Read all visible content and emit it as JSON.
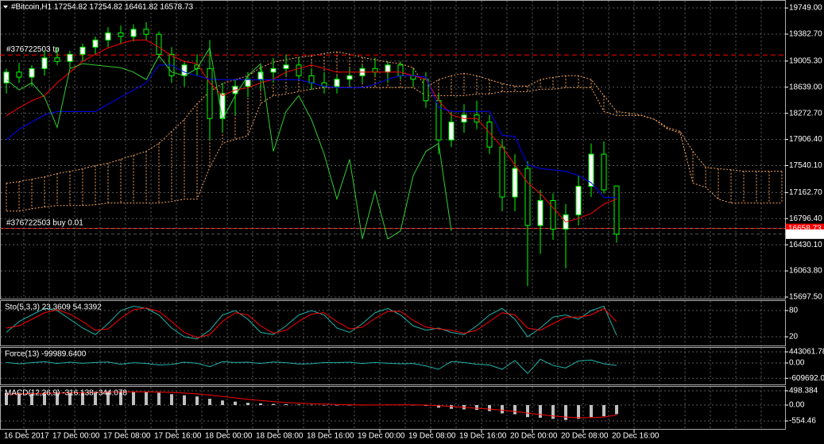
{
  "chart_data": [
    {
      "type": "candlestick",
      "title": "#Bitcoin,H1  17254.82 17254.82 16461.82 16578.73",
      "ylim": [
        15675,
        19861
      ],
      "grid": true,
      "yticks": [
        {
          "value": 19749,
          "label": "19749.00"
        },
        {
          "value": 19382.7,
          "label": "19382.70"
        },
        {
          "value": 19005.3,
          "label": "19005.30"
        },
        {
          "value": 18639,
          "label": "18639.00"
        },
        {
          "value": 18272.7,
          "label": "18272.70"
        },
        {
          "value": 17906.4,
          "label": "17906.40"
        },
        {
          "value": 17540.1,
          "label": "17540.10"
        },
        {
          "value": 17162.7,
          "label": "17162.70"
        },
        {
          "value": 16796.4,
          "label": "16796.40"
        },
        {
          "value": 16430.1,
          "label": "16430.10"
        },
        {
          "value": 16063.8,
          "label": "16063.80"
        },
        {
          "value": 15697.5,
          "label": "15697.50"
        }
      ],
      "time_labels": [
        "16 Dec 2017",
        "17 Dec 00:00",
        "17 Dec 08:00",
        "17 Dec 16:00",
        "18 Dec 00:00",
        "18 Dec 08:00",
        "18 Dec 16:00",
        "19 Dec 00:00",
        "19 Dec 08:00",
        "19 Dec 16:00",
        "20 Dec 00:00",
        "20 Dec 08:00",
        "20 Dec 16:00"
      ],
      "up_color": "#ffffff",
      "down_color": "#000000",
      "wick_color": "#00ff00",
      "open": [
        18700,
        18850,
        18780,
        18900,
        19050,
        19000,
        19100,
        19200,
        19300,
        19400,
        19350,
        19450,
        19380,
        19100,
        18800,
        18950,
        18900,
        18200,
        18550,
        18650,
        18750,
        18850,
        18900,
        18950,
        18800,
        18700,
        18650,
        18750,
        18800,
        18900,
        18850,
        18950,
        18800,
        18750,
        18450,
        17900,
        18150,
        18250,
        18150,
        17800,
        17100,
        17500,
        16700,
        17050,
        16650,
        16850,
        17250,
        17700,
        17254.82
      ],
      "high": [
        18900,
        18980,
        18950,
        19150,
        19200,
        19150,
        19250,
        19350,
        19480,
        19500,
        19520,
        19550,
        19420,
        19200,
        19000,
        19100,
        19300,
        18700,
        18750,
        18850,
        18950,
        19050,
        19100,
        19050,
        18900,
        18850,
        18800,
        18900,
        18950,
        19050,
        19000,
        19000,
        18900,
        18850,
        18550,
        18300,
        18400,
        18450,
        18250,
        17900,
        17700,
        17600,
        17200,
        17150,
        17000,
        17400,
        17850,
        17880,
        17254.82
      ],
      "low": [
        18550,
        18700,
        18650,
        18800,
        18950,
        18900,
        19000,
        19100,
        19200,
        19250,
        19280,
        19300,
        19050,
        18700,
        18650,
        18800,
        17900,
        18000,
        18250,
        18500,
        18600,
        18700,
        18800,
        18750,
        18600,
        18550,
        18550,
        18650,
        18700,
        18800,
        18700,
        18750,
        18650,
        18350,
        17700,
        17800,
        18000,
        18050,
        17700,
        16900,
        16900,
        15850,
        16300,
        16500,
        16100,
        16700,
        17100,
        17150,
        16461.82
      ],
      "close": [
        18850,
        18780,
        18900,
        19050,
        19000,
        19100,
        19200,
        19300,
        19400,
        19350,
        19450,
        19380,
        19100,
        18800,
        18950,
        18900,
        18200,
        18550,
        18650,
        18750,
        18850,
        18900,
        18950,
        18800,
        18700,
        18650,
        18750,
        18800,
        18900,
        18850,
        18950,
        18800,
        18750,
        18450,
        17900,
        18150,
        18250,
        18150,
        17800,
        17100,
        17500,
        16700,
        17050,
        16650,
        16850,
        17250,
        17700,
        17200,
        16578.73
      ],
      "series": [
        {
          "color": "#ff0000",
          "values": [
            18240,
            18350,
            18450,
            18520,
            18700,
            18850,
            19000,
            19100,
            19190,
            19250,
            19300,
            19300,
            19200,
            19080,
            19000,
            18970,
            18700,
            18520,
            18600,
            18630,
            18700,
            18750,
            18850,
            18900,
            18950,
            18900,
            18850,
            18850,
            18850,
            18850,
            18850,
            18850,
            18800,
            18750,
            18450,
            18250,
            18200,
            18200,
            18000,
            17800,
            17550,
            17300,
            17150,
            16950,
            16750,
            16800,
            16870,
            17000,
            17070
          ]
        },
        {
          "color": "#0000ff",
          "values": [
            17900,
            18050,
            18150,
            18250,
            18298,
            18298,
            18298,
            18298,
            18400,
            18500,
            18600,
            18700,
            18950,
            18950,
            18850,
            18800,
            18750,
            18745,
            18745,
            18745,
            18745,
            18745,
            18745,
            18745,
            18700,
            18650,
            18633,
            18633,
            18633,
            18680,
            18750,
            18800,
            18800,
            18780,
            18354,
            18300,
            18300,
            18300,
            18300,
            17963,
            17950,
            17550,
            17500,
            17480,
            17460,
            17400,
            17300,
            17093,
            17093
          ]
        },
        {
          "color": "#32cd32",
          "values": [
            18745,
            18600,
            18700,
            18500,
            18075,
            18900,
            18968,
            18950,
            18930,
            18912,
            18850,
            18745,
            19079,
            18850,
            18800,
            18900,
            19191,
            18186,
            18521,
            18800,
            18968,
            17740,
            18300,
            18521,
            18186,
            17700,
            17070,
            17628,
            16512,
            17182,
            16512,
            16624,
            17400,
            17740,
            17852,
            16624,
            null,
            null,
            null,
            null,
            null,
            null,
            null,
            null,
            null,
            null,
            null,
            null,
            null
          ]
        }
      ],
      "cloud": {
        "color": "#f4a460",
        "span_a": [
          17294,
          17316,
          17349,
          17383,
          17428,
          17461,
          17495,
          17539,
          17573,
          17628,
          17684,
          17740,
          17852,
          18019,
          18186,
          18410,
          18577,
          18689,
          18745,
          18800,
          18912,
          18990,
          19024,
          19057,
          19080,
          19113,
          19135,
          19102,
          19057,
          19024,
          18990,
          18968,
          18912,
          18633,
          18745,
          18800,
          18834,
          18800,
          18745,
          18689,
          18655,
          18655,
          18745,
          18778,
          18800,
          18800,
          18745,
          18521,
          18298,
          18276,
          18242,
          18186,
          18075,
          18019,
          17740,
          17517,
          17495,
          17483,
          17461,
          17461,
          17461,
          17461
        ],
        "span_b": [
          16903,
          16903,
          16936,
          16959,
          16981,
          16981,
          16981,
          16992,
          17015,
          17015,
          17015,
          17015,
          17015,
          17037,
          17070,
          17070,
          17517,
          17852,
          17907,
          17963,
          18410,
          18521,
          18544,
          18577,
          18611,
          18633,
          18633,
          18633,
          18633,
          18633,
          18633,
          18633,
          18633,
          18521,
          18521,
          18521,
          18521,
          18544,
          18544,
          18577,
          18577,
          18577,
          18611,
          18611,
          18633,
          18633,
          18633,
          18298,
          18242,
          18242,
          18242,
          18186,
          18053,
          17997,
          17294,
          17238,
          17070,
          17015,
          17015,
          17015,
          17015,
          17015
        ]
      },
      "annotations": [
        {
          "text": "#376722503 tp",
          "value": 19090,
          "color": "#ff0000",
          "dashed": true
        },
        {
          "text": "#376722503 buy 0.01",
          "value": 16658.73,
          "color": "#ff0000",
          "dashed": false
        }
      ],
      "price_tags": [
        {
          "value": 16658.73,
          "color": "#ff0000",
          "text_color": "#ffffff"
        },
        {
          "value": 16578.73,
          "color": "#ffffff",
          "text_color": "#000000"
        }
      ]
    },
    {
      "type": "line",
      "title": "Sto(5,3,3) 23.3609 54.3392",
      "ylim": [
        0,
        100
      ],
      "yticks": [
        80,
        20
      ],
      "series": [
        {
          "color": "#20b2aa",
          "values": [
            30,
            55,
            70,
            85,
            80,
            60,
            40,
            25,
            50,
            80,
            90,
            85,
            70,
            40,
            20,
            15,
            35,
            70,
            80,
            60,
            30,
            25,
            45,
            70,
            80,
            70,
            40,
            30,
            50,
            75,
            85,
            70,
            45,
            35,
            40,
            30,
            25,
            45,
            70,
            85,
            60,
            20,
            40,
            65,
            70,
            60,
            80,
            90,
            23.3609
          ]
        },
        {
          "color": "#ff0000",
          "values": [
            40,
            45,
            60,
            75,
            82,
            72,
            55,
            35,
            38,
            62,
            82,
            86,
            78,
            55,
            30,
            18,
            25,
            55,
            75,
            70,
            45,
            28,
            35,
            55,
            72,
            75,
            55,
            38,
            42,
            62,
            78,
            78,
            58,
            42,
            38,
            35,
            28,
            35,
            55,
            75,
            70,
            40,
            35,
            50,
            65,
            65,
            70,
            85,
            54.3392
          ]
        }
      ]
    },
    {
      "type": "line",
      "title": "Force(13) -99989.6400",
      "ylim": [
        -854470,
        601300
      ],
      "yticks": [
        443061.784,
        {
          "value": 0,
          "label": "0.00"
        },
        -609692.05
      ],
      "series": [
        {
          "color": "#20b2aa",
          "values": [
            20000,
            -30000,
            10000,
            50000,
            -20000,
            30000,
            -10000,
            20000,
            40000,
            -50000,
            10000,
            -20000,
            -80000,
            -60000,
            30000,
            -10000,
            -150000,
            50000,
            20000,
            30000,
            -20000,
            40000,
            10000,
            -40000,
            -30000,
            20000,
            10000,
            30000,
            -20000,
            20000,
            -10000,
            -30000,
            -20000,
            -120000,
            -250000,
            60000,
            20000,
            -50000,
            -80000,
            -250000,
            100000,
            -420000,
            150000,
            -100000,
            -200000,
            80000,
            120000,
            -30000,
            -99989.64
          ]
        }
      ]
    },
    {
      "type": "macd",
      "title": "MACD(12,26,9) -316.138 -344.078",
      "ylim": [
        -830.7,
        636.8
      ],
      "yticks": [
        498.384,
        {
          "value": 0,
          "label": "0.00"
        },
        -554.46
      ],
      "series": [
        {
          "color": "#c0c0c0",
          "kind": "histogram",
          "values": [
            420,
            430,
            430,
            440,
            440,
            450,
            460,
            470,
            480,
            480,
            470,
            460,
            430,
            380,
            340,
            300,
            220,
            160,
            120,
            80,
            60,
            40,
            30,
            20,
            10,
            0,
            -10,
            -10,
            0,
            10,
            20,
            10,
            0,
            -30,
            -90,
            -130,
            -150,
            -170,
            -210,
            -290,
            -320,
            -420,
            -440,
            -480,
            -520,
            -480,
            -420,
            -390,
            -316.138
          ]
        },
        {
          "color": "#ff0000",
          "kind": "line",
          "values": [
            380,
            390,
            400,
            410,
            420,
            425,
            430,
            440,
            450,
            455,
            460,
            460,
            455,
            440,
            420,
            390,
            350,
            300,
            250,
            200,
            160,
            120,
            90,
            70,
            50,
            35,
            20,
            10,
            5,
            5,
            8,
            10,
            8,
            0,
            -20,
            -50,
            -80,
            -110,
            -140,
            -180,
            -220,
            -280,
            -330,
            -380,
            -420,
            -440,
            -440,
            -420,
            -344.078
          ]
        }
      ]
    }
  ]
}
